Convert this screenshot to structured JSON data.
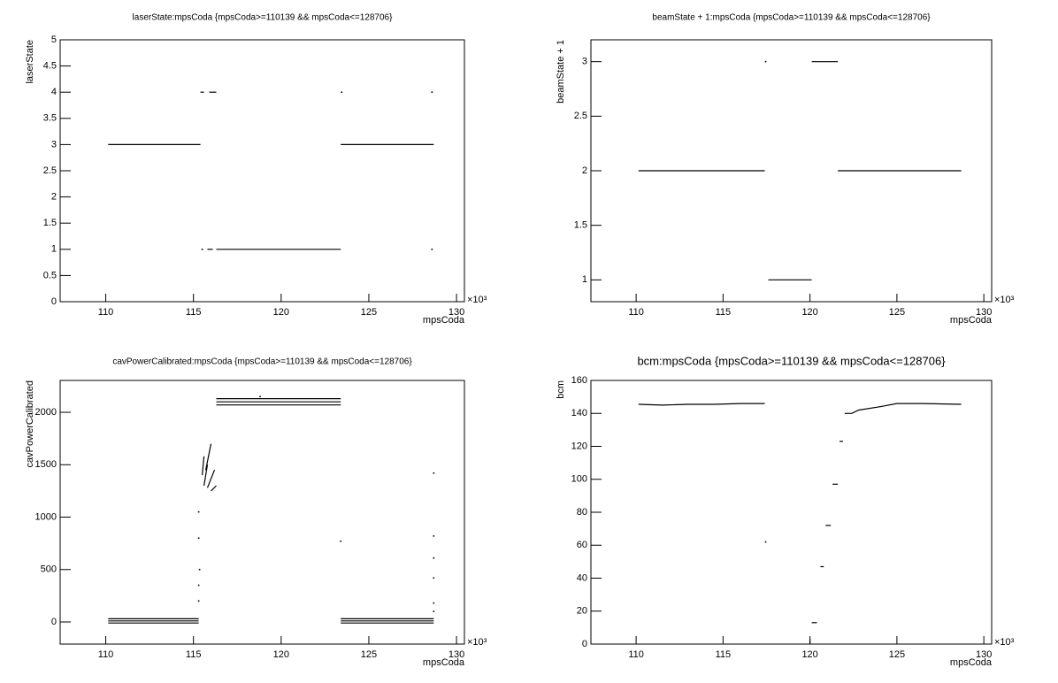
{
  "chart_data": [
    {
      "type": "line",
      "title": "laserState:mpsCoda {mpsCoda>=110139 && mpsCoda<=128706}",
      "x_label": "mpsCoda",
      "y_label": "laserState",
      "x_multiplier": "×10³",
      "color": "#000000",
      "xlim": [
        107.4,
        130.45
      ],
      "xticks": [
        110,
        115,
        120,
        125,
        130
      ],
      "ylim": [
        0,
        5
      ],
      "yticks": [
        0,
        0.5,
        1,
        1.5,
        2,
        2.5,
        3,
        3.5,
        4,
        4.5,
        5
      ],
      "x": [
        110.14,
        115.4,
        null,
        115.4,
        115.6,
        null,
        115.9,
        116.3,
        null,
        115.5,
        null,
        115.8,
        116.1,
        null,
        116.3,
        123.4,
        null,
        123.45,
        null,
        123.4,
        128.7,
        null,
        128.6,
        null,
        128.6
      ],
      "values": [
        3,
        3,
        null,
        4,
        4,
        null,
        4,
        4,
        null,
        1,
        null,
        1,
        1,
        null,
        1,
        1,
        null,
        4,
        null,
        3,
        3,
        null,
        4,
        null,
        1
      ]
    },
    {
      "type": "line",
      "title": "beamState + 1:mpsCoda {mpsCoda>=110139 && mpsCoda<=128706}",
      "x_label": "mpsCoda",
      "y_label": "beamState + 1",
      "x_multiplier": "×10³",
      "color": "#000000",
      "xlim": [
        107.4,
        130.45
      ],
      "xticks": [
        110,
        115,
        120,
        125,
        130
      ],
      "ylim": [
        0.8,
        3.2
      ],
      "yticks": [
        1,
        1.5,
        2,
        2.5,
        3
      ],
      "x": [
        110.14,
        117.4,
        null,
        117.45,
        null,
        117.6,
        120.1,
        null,
        120.1,
        121.6,
        null,
        121.6,
        128.7
      ],
      "values": [
        2,
        2,
        null,
        3,
        null,
        1,
        1,
        null,
        3,
        3,
        null,
        2,
        2
      ]
    },
    {
      "type": "line",
      "title": "cavPowerCalibrated:mpsCoda {mpsCoda>=110139 && mpsCoda<=128706}",
      "x_label": "mpsCoda",
      "y_label": "cavPowerCalibrated",
      "x_multiplier": "×10³",
      "color": "#000000",
      "xlim": [
        107.4,
        130.45
      ],
      "xticks": [
        110,
        115,
        120,
        125,
        130
      ],
      "ylim": [
        -211,
        2304
      ],
      "yticks": [
        0,
        500,
        1000,
        1500,
        2000
      ],
      "x": [
        110.14,
        115.3,
        null,
        110.14,
        115.3,
        null,
        110.14,
        115.3,
        null,
        115.3,
        null,
        115.3,
        null,
        115.35,
        null,
        115.3,
        null,
        115.3,
        null,
        115.5,
        115.6,
        null,
        115.6,
        115.8,
        null,
        115.7,
        116.0,
        null,
        115.8,
        116.2,
        null,
        116.0,
        116.3,
        null,
        116.3,
        123.4,
        null,
        116.3,
        123.4,
        null,
        116.3,
        123.4,
        null,
        118.8,
        null,
        123.4,
        null,
        123.4,
        128.7,
        null,
        123.4,
        128.7,
        null,
        123.4,
        128.7,
        null,
        128.7,
        null,
        128.7,
        null,
        128.7,
        null,
        128.7,
        null,
        128.7,
        null,
        128.7
      ],
      "values": [
        30,
        30,
        null,
        10,
        10,
        null,
        -10,
        -10,
        null,
        200,
        null,
        350,
        null,
        500,
        null,
        800,
        null,
        1050,
        null,
        1400,
        1580,
        null,
        1300,
        1500,
        null,
        1450,
        1700,
        null,
        1280,
        1450,
        null,
        1250,
        1300,
        null,
        2130,
        2130,
        null,
        2100,
        2100,
        null,
        2070,
        2070,
        null,
        2150,
        null,
        770,
        null,
        30,
        30,
        null,
        10,
        10,
        null,
        -10,
        -10,
        null,
        1420,
        null,
        820,
        null,
        610,
        null,
        420,
        null,
        180,
        null,
        100
      ]
    },
    {
      "type": "line",
      "title": "bcm:mpsCoda {mpsCoda>=110139 && mpsCoda<=128706}",
      "x_label": "mpsCoda",
      "y_label": "bcm",
      "x_multiplier": "×10³",
      "color": "#000000",
      "xlim": [
        107.4,
        130.45
      ],
      "xticks": [
        110,
        115,
        120,
        125,
        130
      ],
      "ylim": [
        0,
        160
      ],
      "yticks": [
        0,
        20,
        40,
        60,
        80,
        100,
        120,
        140,
        160
      ],
      "x": [
        110.14,
        111.5,
        113,
        114.5,
        116,
        117.4,
        null,
        117.45,
        null,
        120.0,
        120.0,
        null,
        120.1,
        120.4,
        null,
        120.6,
        120.8,
        null,
        120.9,
        121.2,
        null,
        121.3,
        121.6,
        null,
        121.7,
        121.9,
        null,
        122.0,
        122.4,
        122.8,
        124,
        125,
        126.5,
        128.7
      ],
      "values": [
        145.5,
        145,
        145.5,
        145.5,
        146,
        146,
        null,
        62,
        null,
        0,
        3,
        null,
        13,
        13,
        null,
        47,
        47,
        null,
        72,
        72,
        null,
        97,
        97,
        null,
        123,
        123,
        null,
        140,
        140,
        142,
        144,
        146,
        146,
        145.5
      ]
    }
  ]
}
